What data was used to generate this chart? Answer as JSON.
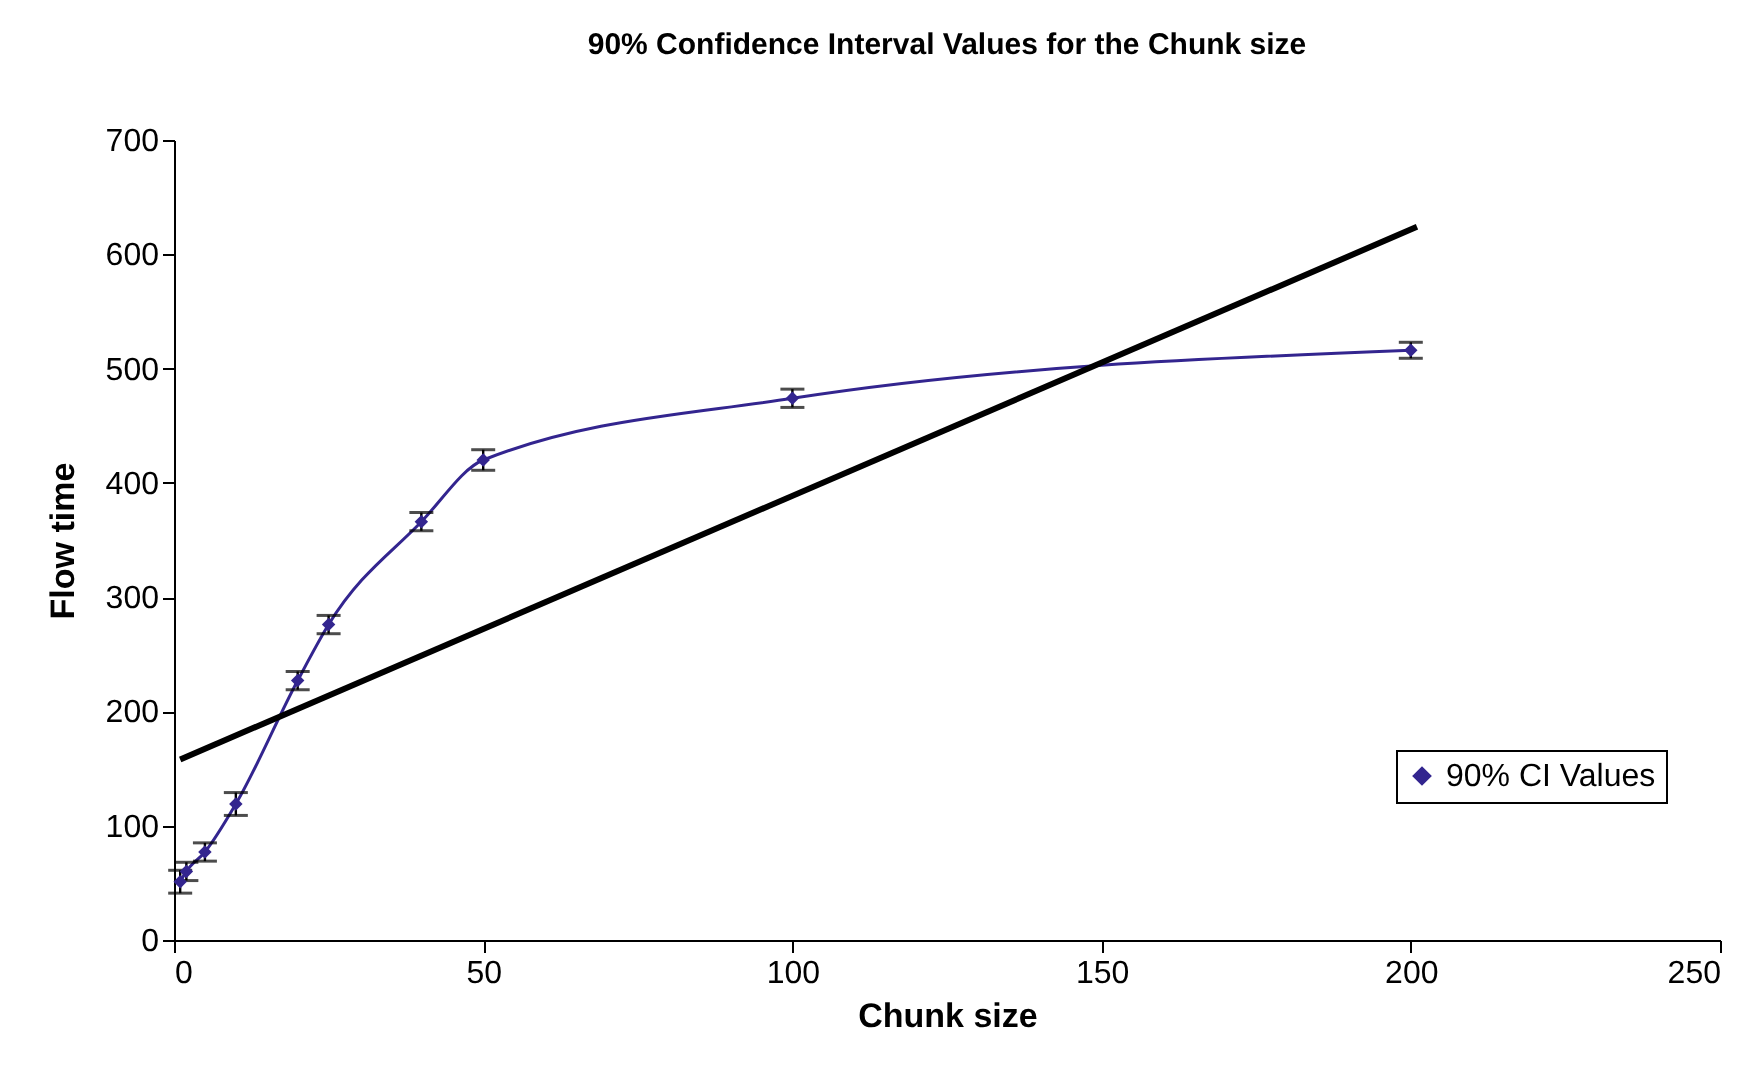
{
  "chart_data": {
    "type": "line",
    "title": "90% Confidence Interval Values for the Chunk size",
    "xlabel": "Chunk size",
    "ylabel": "Flow time",
    "xlim": [
      0,
      250
    ],
    "xticks": [
      0,
      50,
      100,
      150,
      200,
      250
    ],
    "ylim": [
      0,
      700
    ],
    "yticks": [
      0,
      100,
      200,
      300,
      400,
      500,
      600,
      700
    ],
    "grid": false,
    "legend": "right",
    "marker": "diamond",
    "series": [
      {
        "name": "90% CI Values",
        "color": "#33258f",
        "x": [
          1,
          2,
          5,
          10,
          20,
          25,
          40,
          50,
          100,
          200
        ],
        "values": [
          51,
          60,
          77,
          119,
          227,
          276,
          366,
          420,
          474,
          516
        ],
        "errors": [
          10,
          8,
          8,
          10,
          8,
          8,
          8,
          9,
          8,
          7
        ]
      },
      {
        "type": "line",
        "color": "#000000",
        "x": [
          1,
          201
        ],
        "values": [
          158,
          624
        ],
        "marker": "none"
      }
    ]
  }
}
